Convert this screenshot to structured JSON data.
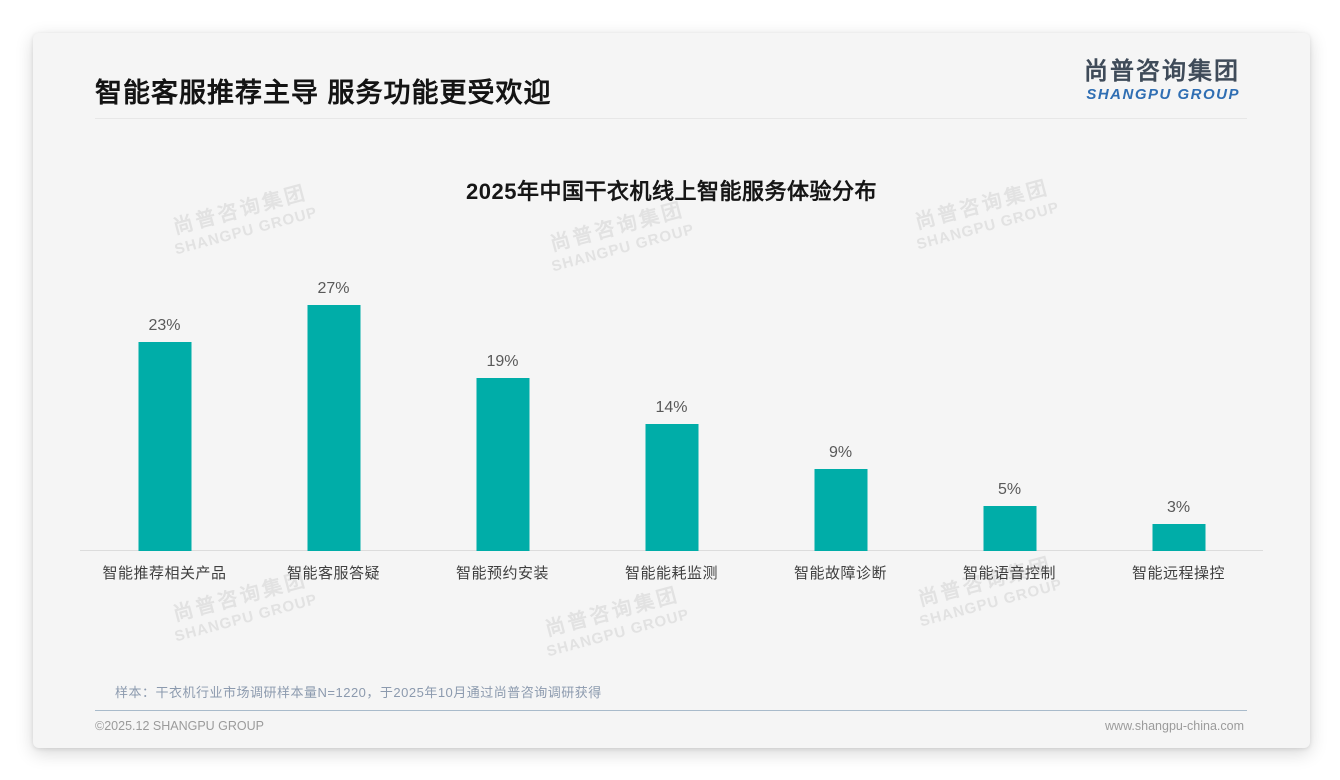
{
  "header": {
    "title": "智能客服推荐主导 服务功能更受欢迎",
    "logo_cn": "尚普咨询集团",
    "logo_en": "SHANGPU GROUP"
  },
  "chart_data": {
    "type": "bar",
    "title": "2025年中国干衣机线上智能服务体验分布",
    "categories": [
      "智能推荐相关产品",
      "智能客服答疑",
      "智能预约安装",
      "智能能耗监测",
      "智能故障诊断",
      "智能语音控制",
      "智能远程操控"
    ],
    "values": [
      23,
      27,
      19,
      14,
      9,
      5,
      3
    ],
    "value_labels": [
      "23%",
      "27%",
      "19%",
      "14%",
      "9%",
      "5%",
      "3%"
    ],
    "unit": "%",
    "ylim": [
      0,
      30
    ],
    "grid": false,
    "legend": false,
    "bar_color": "#00ada8",
    "xlabel": "",
    "ylabel": ""
  },
  "watermark": {
    "line1": "尚普咨询集团",
    "line2": "SHANGPU GROUP"
  },
  "footnote": "样本：干衣机行业市场调研样本量N=1220，于2025年10月通过尚普咨询调研获得",
  "footer": {
    "copyright": "©2025.12 SHANGPU GROUP",
    "website": "www.shangpu-china.com"
  },
  "colors": {
    "bar": "#00ada8",
    "logo_blue": "#2f6eb3",
    "note_gray_blue": "#8c9aae",
    "card_bg": "#f5f5f5"
  }
}
